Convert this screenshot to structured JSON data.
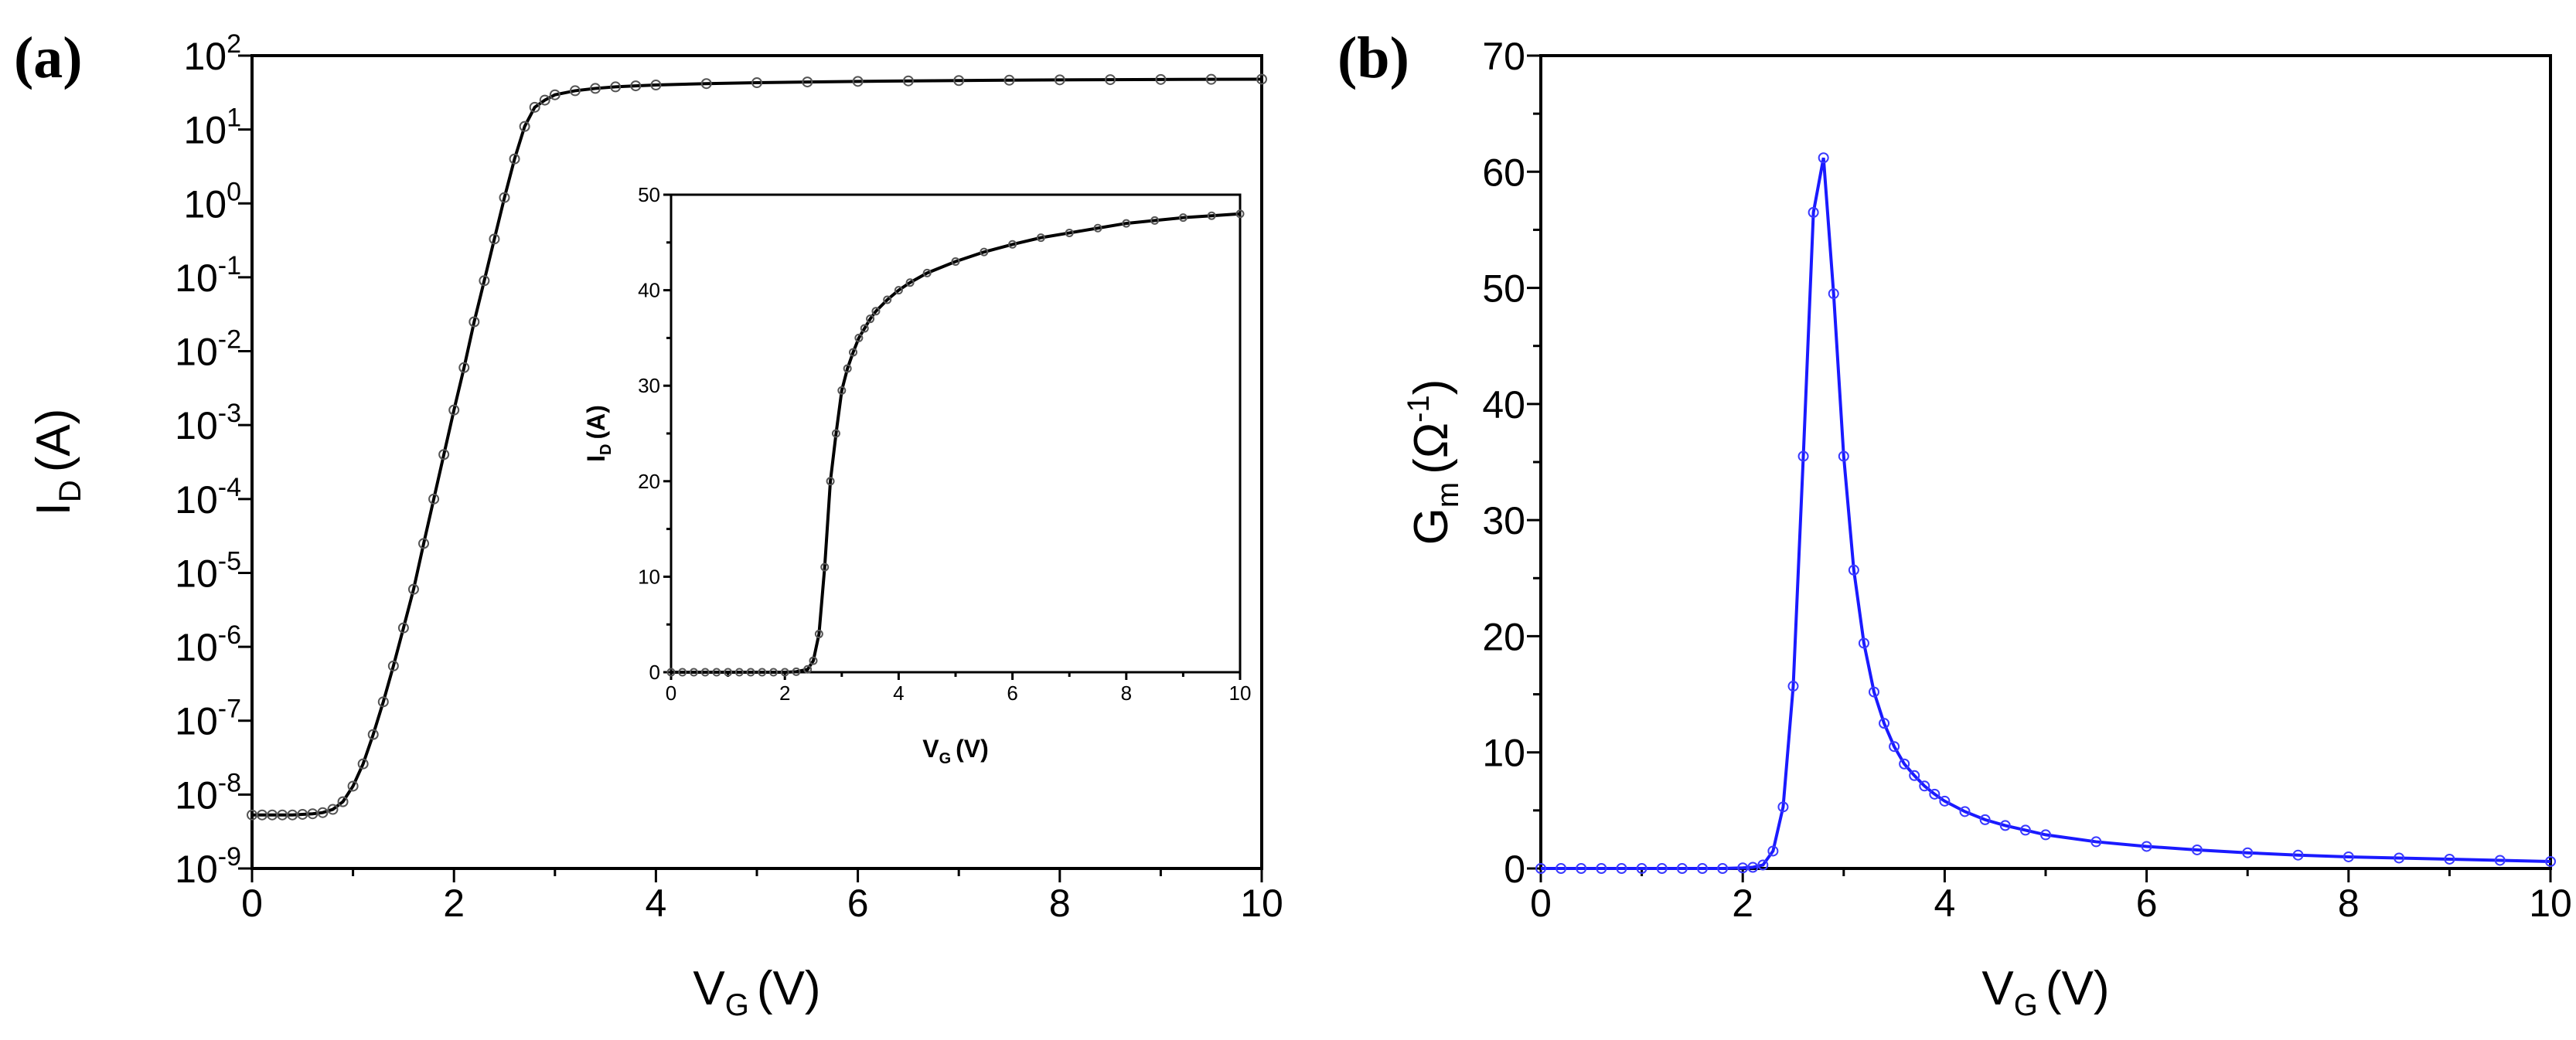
{
  "chart_data": [
    {
      "panel": "(a)",
      "type": "line",
      "xlabel": "V",
      "xlabel_sub": "G",
      "xlabel_unit": "(V)",
      "ylabel": "I",
      "ylabel_sub": "D",
      "ylabel_unit": "(A)",
      "xlim": [
        0,
        10
      ],
      "ylim": [
        -9,
        2
      ],
      "yscale": "log",
      "xticks": [
        "0",
        "2",
        "4",
        "6",
        "8",
        "10"
      ],
      "yticks": [
        {
          "base": "10",
          "exp": "2"
        },
        {
          "base": "10",
          "exp": "1"
        },
        {
          "base": "10",
          "exp": "0"
        },
        {
          "base": "10",
          "exp": "-1"
        },
        {
          "base": "10",
          "exp": "-2"
        },
        {
          "base": "10",
          "exp": "-3"
        },
        {
          "base": "10",
          "exp": "-4"
        },
        {
          "base": "10",
          "exp": "-5"
        },
        {
          "base": "10",
          "exp": "-6"
        },
        {
          "base": "10",
          "exp": "-7"
        },
        {
          "base": "10",
          "exp": "-8"
        },
        {
          "base": "10",
          "exp": "-9"
        }
      ],
      "series": [
        {
          "name": "I_D",
          "color": "#000000",
          "x": [
            0,
            0.1,
            0.2,
            0.3,
            0.4,
            0.5,
            0.6,
            0.7,
            0.8,
            0.9,
            1.0,
            1.1,
            1.2,
            1.3,
            1.4,
            1.5,
            1.6,
            1.7,
            1.8,
            1.9,
            2.0,
            2.1,
            2.2,
            2.3,
            2.4,
            2.5,
            2.6,
            2.7,
            2.8,
            2.9,
            3.0,
            3.2,
            3.4,
            3.6,
            3.8,
            4.0,
            4.5,
            5.0,
            5.5,
            6.0,
            6.5,
            7.0,
            7.5,
            8.0,
            8.5,
            9.0,
            9.5,
            10.0
          ],
          "y": [
            5.3e-09,
            5.3e-09,
            5.3e-09,
            5.3e-09,
            5.3e-09,
            5.4e-09,
            5.5e-09,
            5.7e-09,
            6.3e-09,
            8e-09,
            1.3e-08,
            2.6e-08,
            6.5e-08,
            1.8e-07,
            5.5e-07,
            1.8e-06,
            6e-06,
            2.5e-05,
            0.0001,
            0.0004,
            0.0016,
            0.006,
            0.025,
            0.09,
            0.33,
            1.2,
            4.0,
            11,
            20,
            25,
            29.5,
            33.5,
            36,
            37.8,
            39,
            40,
            41.8,
            43,
            44,
            44.8,
            45.5,
            46,
            46.5,
            47,
            47.3,
            47.6,
            47.8,
            48
          ]
        }
      ],
      "inset": {
        "type": "line",
        "xlabel": "V",
        "xlabel_sub": "G",
        "xlabel_unit": "(V)",
        "ylabel": "I",
        "ylabel_sub": "D",
        "ylabel_unit": "(A)",
        "xlim": [
          0,
          10
        ],
        "ylim": [
          0,
          50
        ],
        "xticks": [
          "0",
          "2",
          "4",
          "6",
          "8",
          "10"
        ],
        "yticks": [
          "0",
          "10",
          "20",
          "30",
          "40",
          "50"
        ],
        "x": [
          0,
          0.2,
          0.4,
          0.6,
          0.8,
          1.0,
          1.2,
          1.4,
          1.6,
          1.8,
          2.0,
          2.2,
          2.4,
          2.5,
          2.6,
          2.7,
          2.8,
          2.9,
          3.0,
          3.1,
          3.2,
          3.3,
          3.4,
          3.5,
          3.6,
          3.8,
          4.0,
          4.2,
          4.5,
          5.0,
          5.5,
          6.0,
          6.5,
          7.0,
          7.5,
          8.0,
          8.5,
          9.0,
          9.5,
          10.0
        ],
        "y": [
          0,
          0,
          0,
          0,
          0,
          0,
          0,
          0,
          0,
          0,
          0,
          0.05,
          0.3,
          1.2,
          4.0,
          11,
          20,
          25,
          29.5,
          31.8,
          33.5,
          35,
          36,
          37,
          37.8,
          39,
          40,
          40.8,
          41.8,
          43,
          44,
          44.8,
          45.5,
          46,
          46.5,
          47,
          47.3,
          47.6,
          47.8,
          48
        ]
      }
    },
    {
      "panel": "(b)",
      "type": "line",
      "xlabel": "V",
      "xlabel_sub": "G",
      "xlabel_unit": "(V)",
      "ylabel": "G",
      "ylabel_sub": "m",
      "ylabel_unit_open": "(Ω",
      "ylabel_unit_sup": "-1",
      "ylabel_unit_close": ")",
      "xlim": [
        0,
        10
      ],
      "ylim": [
        0,
        70
      ],
      "xticks": [
        "0",
        "2",
        "4",
        "6",
        "8",
        "10"
      ],
      "yticks": [
        "0",
        "10",
        "20",
        "30",
        "40",
        "50",
        "60",
        "70"
      ],
      "series": [
        {
          "name": "G_m",
          "color": "#1a1aff",
          "x": [
            0,
            0.2,
            0.4,
            0.6,
            0.8,
            1.0,
            1.2,
            1.4,
            1.6,
            1.8,
            2.0,
            2.1,
            2.2,
            2.3,
            2.4,
            2.5,
            2.6,
            2.7,
            2.8,
            2.9,
            3.0,
            3.1,
            3.2,
            3.3,
            3.4,
            3.5,
            3.6,
            3.7,
            3.8,
            3.9,
            4.0,
            4.2,
            4.4,
            4.6,
            4.8,
            5.0,
            5.5,
            6.0,
            6.5,
            7.0,
            7.5,
            8.0,
            8.5,
            9.0,
            9.5,
            10.0
          ],
          "y": [
            0,
            0,
            0,
            0,
            0,
            0,
            0,
            0,
            0,
            0,
            0.05,
            0.1,
            0.3,
            1.5,
            5.3,
            15.7,
            35.5,
            56.5,
            61.2,
            49.5,
            35.5,
            25.7,
            19.4,
            15.2,
            12.5,
            10.5,
            9.0,
            8.0,
            7.1,
            6.4,
            5.8,
            4.9,
            4.2,
            3.7,
            3.3,
            2.9,
            2.3,
            1.9,
            1.6,
            1.35,
            1.15,
            1.0,
            0.9,
            0.8,
            0.7,
            0.6
          ]
        }
      ]
    }
  ]
}
